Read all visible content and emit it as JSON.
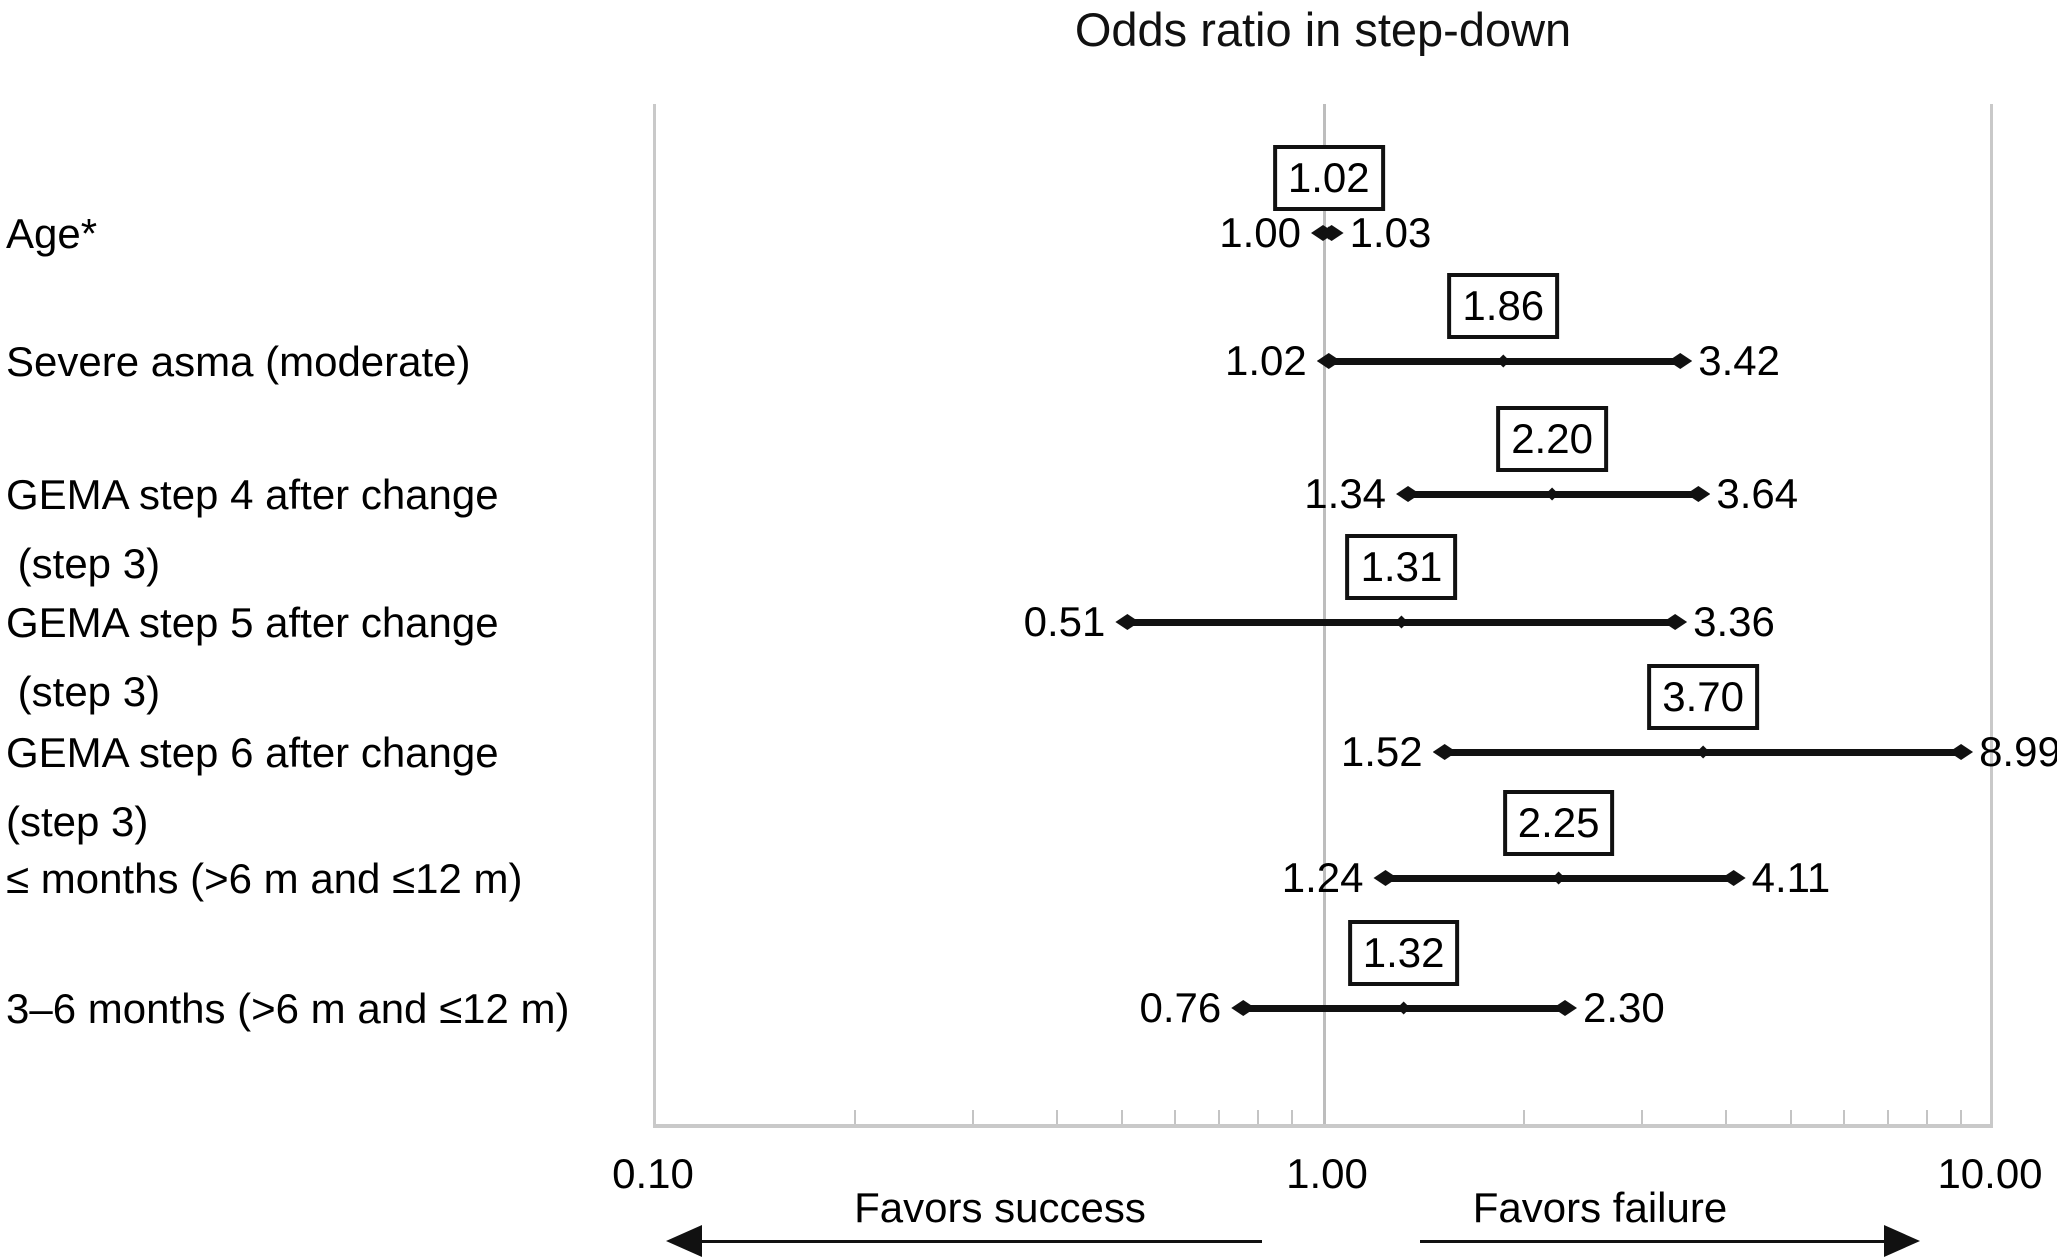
{
  "title": "Odds ratio in step-down",
  "axis": {
    "min_label": "0.10",
    "mid_label": "1.00",
    "max_label": "10.00",
    "left_annotation": "Favors success",
    "right_annotation": "Favors failure"
  },
  "colors": {
    "text": "#000000",
    "ci_line": "#111111",
    "frame": "#c9c9c9",
    "reference_line": "#bdbdbd",
    "background": "#ffffff"
  },
  "chart_data": {
    "type": "forest",
    "title": "Odds ratio in step-down",
    "x_scale": "log10",
    "x_range": [
      0.1,
      10.0
    ],
    "x_tick_labels": [
      "0.10",
      "1.00",
      "10.00"
    ],
    "x_minor_ticks": [
      0.2,
      0.3,
      0.4,
      0.5,
      0.6,
      0.7,
      0.8,
      0.9,
      2,
      3,
      4,
      5,
      6,
      7,
      8,
      9
    ],
    "reference_line": 1.0,
    "grid": false,
    "legend": false,
    "annotations": {
      "left": "Favors success",
      "right": "Favors failure"
    },
    "rows": [
      {
        "label_lines": [
          "Age*"
        ],
        "or": 1.02,
        "ci_low": 1.0,
        "ci_high": 1.03,
        "or_text": "1.02",
        "low_text": "1.00",
        "high_text": "1.03"
      },
      {
        "label_lines": [
          "Severe asma (moderate)"
        ],
        "or": 1.86,
        "ci_low": 1.02,
        "ci_high": 3.42,
        "or_text": "1.86",
        "low_text": "1.02",
        "high_text": "3.42"
      },
      {
        "label_lines": [
          "GEMA step 4 after change",
          " (step 3)"
        ],
        "or": 2.2,
        "ci_low": 1.34,
        "ci_high": 3.64,
        "or_text": "2.20",
        "low_text": "1.34",
        "high_text": "3.64"
      },
      {
        "label_lines": [
          "GEMA step 5 after change",
          " (step 3)"
        ],
        "or": 1.31,
        "ci_low": 0.51,
        "ci_high": 3.36,
        "or_text": "1.31",
        "low_text": "0.51",
        "high_text": "3.36"
      },
      {
        "label_lines": [
          "GEMA step 6 after change",
          "(step 3)"
        ],
        "or": 3.7,
        "ci_low": 1.52,
        "ci_high": 8.99,
        "or_text": "3.70",
        "low_text": "1.52",
        "high_text": "8.99"
      },
      {
        "label_lines": [
          "≤ months (>6 m and ≤12 m)"
        ],
        "or": 2.25,
        "ci_low": 1.24,
        "ci_high": 4.11,
        "or_text": "2.25",
        "low_text": "1.24",
        "high_text": "4.11"
      },
      {
        "label_lines": [
          "3–6 months (>6 m and ≤12 m)"
        ],
        "or": 1.32,
        "ci_low": 0.76,
        "ci_high": 2.3,
        "or_text": "1.32",
        "low_text": "0.76",
        "high_text": "2.30"
      }
    ]
  }
}
